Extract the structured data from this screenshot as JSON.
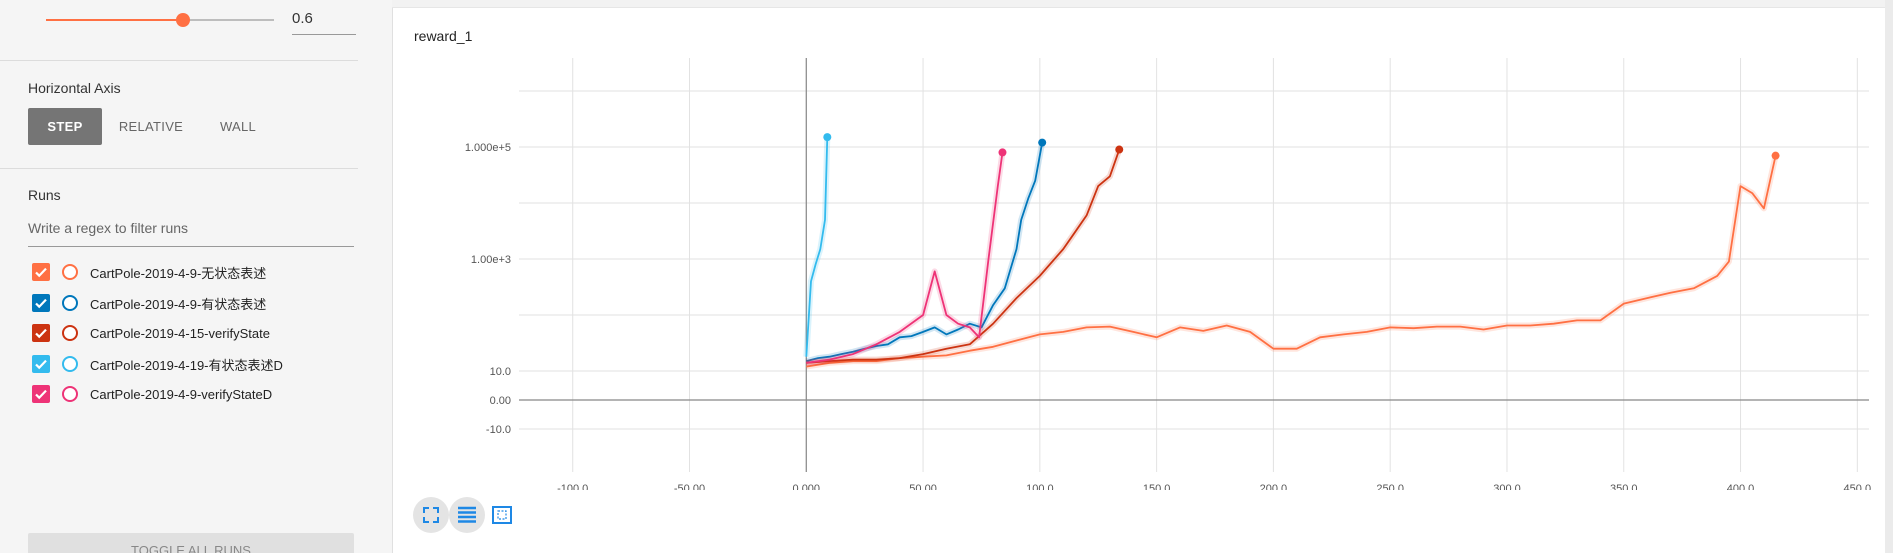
{
  "sidebar": {
    "smoothing": {
      "value": "0.6",
      "level": 0.6
    },
    "horizontal_axis": {
      "title": "Horizontal Axis",
      "options": [
        "STEP",
        "RELATIVE",
        "WALL"
      ],
      "selected": "STEP"
    },
    "runs": {
      "title": "Runs",
      "filter_placeholder": "Write a regex to filter runs",
      "items": [
        {
          "label": "CartPole-2019-4-9-无状态表述",
          "color": "#ff7043",
          "checked": true
        },
        {
          "label": "CartPole-2019-4-9-有状态表述",
          "color": "#0077bb",
          "checked": true
        },
        {
          "label": "CartPole-2019-4-15-verifyState",
          "color": "#cc3311",
          "checked": true
        },
        {
          "label": "CartPole-2019-4-19-有状态表述D",
          "color": "#33bbee",
          "checked": true
        },
        {
          "label": "CartPole-2019-4-9-verifyStateD",
          "color": "#ee3377",
          "checked": true
        }
      ]
    },
    "toggle_all_label": "TOGGLE ALL RUNS"
  },
  "chart": {
    "title": "reward_1"
  },
  "chart_data": {
    "type": "line",
    "title": "reward_1",
    "xlabel": "",
    "ylabel": "",
    "xlim": [
      -123,
      455
    ],
    "y_scale": "symlog",
    "y_ticks": [
      "1.000e+5",
      "1.00e+3",
      "10.0",
      "0.00",
      "-10.0"
    ],
    "x_ticks": [
      "-100.0",
      "-50.00",
      "0.000",
      "50.00",
      "100.0",
      "150.0",
      "200.0",
      "250.0",
      "300.0",
      "350.0",
      "400.0",
      "450.0"
    ],
    "grid": true,
    "series": [
      {
        "name": "CartPole-2019-4-9-无状态表述",
        "color": "#ff7043",
        "x": [
          0,
          10,
          20,
          30,
          40,
          50,
          60,
          70,
          80,
          90,
          100,
          110,
          120,
          130,
          140,
          150,
          160,
          170,
          180,
          190,
          200,
          210,
          220,
          230,
          240,
          250,
          260,
          270,
          280,
          290,
          300,
          310,
          320,
          330,
          340,
          350,
          360,
          370,
          380,
          390,
          395,
          400,
          405,
          410,
          415
        ],
        "y": [
          12,
          14,
          15,
          15,
          17,
          18,
          19,
          23,
          27,
          35,
          45,
          50,
          60,
          62,
          50,
          40,
          60,
          52,
          65,
          50,
          25,
          25,
          40,
          45,
          50,
          60,
          58,
          62,
          62,
          55,
          65,
          65,
          70,
          80,
          80,
          160,
          200,
          250,
          300,
          500,
          900,
          20000,
          15000,
          8000,
          70000
        ]
      },
      {
        "name": "CartPole-2019-4-9-有状态表述",
        "color": "#0077bb",
        "x": [
          0,
          5,
          10,
          15,
          20,
          25,
          30,
          35,
          40,
          45,
          50,
          55,
          60,
          65,
          70,
          75,
          80,
          85,
          90,
          92,
          95,
          98,
          101
        ],
        "y": [
          15,
          17,
          18,
          20,
          22,
          25,
          28,
          30,
          40,
          42,
          50,
          60,
          45,
          55,
          70,
          60,
          150,
          300,
          1500,
          5000,
          12000,
          25000,
          120000
        ]
      },
      {
        "name": "CartPole-2019-4-15-verifyState",
        "color": "#cc3311",
        "x": [
          0,
          10,
          20,
          30,
          40,
          50,
          60,
          70,
          80,
          90,
          100,
          110,
          115,
          120,
          125,
          130,
          134
        ],
        "y": [
          14,
          15,
          16,
          16,
          17,
          20,
          25,
          30,
          70,
          200,
          500,
          1500,
          3000,
          6000,
          20000,
          30000,
          90000
        ]
      },
      {
        "name": "CartPole-2019-4-19-有状态表述D",
        "color": "#33bbee",
        "x": [
          0,
          2,
          4,
          6,
          8,
          9
        ],
        "y": [
          18,
          400,
          800,
          1500,
          5000,
          150000
        ]
      },
      {
        "name": "CartPole-2019-4-9-verifyStateD",
        "color": "#ee3377",
        "x": [
          0,
          10,
          20,
          30,
          40,
          50,
          55,
          60,
          65,
          70,
          74,
          78,
          82,
          84
        ],
        "y": [
          14,
          16,
          20,
          30,
          50,
          100,
          600,
          100,
          70,
          60,
          40,
          1000,
          20000,
          80000
        ]
      }
    ]
  },
  "icons": [
    "expand-chart-icon",
    "toggle-log-scale-icon",
    "fit-domain-icon"
  ]
}
